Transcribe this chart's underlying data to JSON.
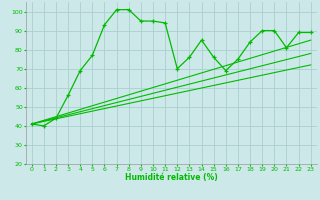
{
  "xlabel": "Humidité relative (%)",
  "bg_color": "#cce8e8",
  "grid_color": "#aacfcf",
  "line_color": "#00bb00",
  "xlim": [
    -0.5,
    23.5
  ],
  "ylim": [
    20,
    105
  ],
  "xticks": [
    0,
    1,
    2,
    3,
    4,
    5,
    6,
    7,
    8,
    9,
    10,
    11,
    12,
    13,
    14,
    15,
    16,
    17,
    18,
    19,
    20,
    21,
    22,
    23
  ],
  "yticks": [
    20,
    30,
    40,
    50,
    60,
    70,
    80,
    90,
    100
  ],
  "main_x": [
    0,
    1,
    2,
    3,
    4,
    5,
    6,
    7,
    8,
    9,
    10,
    11,
    12,
    13,
    14,
    15,
    16,
    17,
    18,
    19,
    20,
    21,
    22,
    23
  ],
  "main_y": [
    41,
    40,
    44,
    56,
    69,
    77,
    93,
    101,
    101,
    95,
    95,
    94,
    70,
    76,
    85,
    76,
    69,
    75,
    84,
    90,
    90,
    81,
    89,
    89
  ],
  "line2_x": [
    0,
    23
  ],
  "line2_y": [
    41,
    85
  ],
  "line3_x": [
    0,
    23
  ],
  "line3_y": [
    41,
    78
  ],
  "line4_x": [
    0,
    23
  ],
  "line4_y": [
    41,
    72
  ]
}
